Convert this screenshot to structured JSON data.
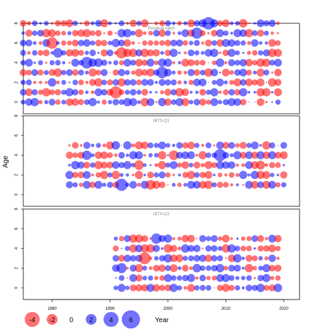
{
  "chart_data": {
    "type": "bubble",
    "ylabel": "Age",
    "xlim": [
      1972,
      2022
    ],
    "ylim": [
      -1,
      9
    ],
    "x_ticks": [
      "1980",
      "1990",
      "2000",
      "2010",
      "2020"
    ],
    "y_ticks": [
      "0",
      "2",
      "4",
      "6",
      "8"
    ],
    "colors": {
      "positive": "#0000FF",
      "negative": "#FF0000",
      "opacity": 0.55
    },
    "panels": [
      {
        "title": "Residual catch",
        "ages": [
          0,
          1,
          2,
          3,
          4,
          5,
          6,
          7,
          8
        ],
        "years": [
          1975,
          2019
        ]
      },
      {
        "title": "IBTS-Q1",
        "ages": [
          1,
          2,
          3,
          4,
          5
        ],
        "years": [
          1983,
          2020
        ]
      },
      {
        "title": "IBTS-Q3",
        "ages": [
          0,
          1,
          2,
          3,
          4,
          5
        ],
        "years": [
          1991,
          2019
        ]
      }
    ],
    "legend": {
      "title": "Year",
      "items": [
        {
          "label": "-4",
          "value": -4
        },
        {
          "label": "-2",
          "value": -2
        },
        {
          "label": "0",
          "value": 0
        },
        {
          "label": "2",
          "value": 2
        },
        {
          "label": "4",
          "value": 4
        },
        {
          "label": "6",
          "value": 6
        }
      ]
    }
  }
}
